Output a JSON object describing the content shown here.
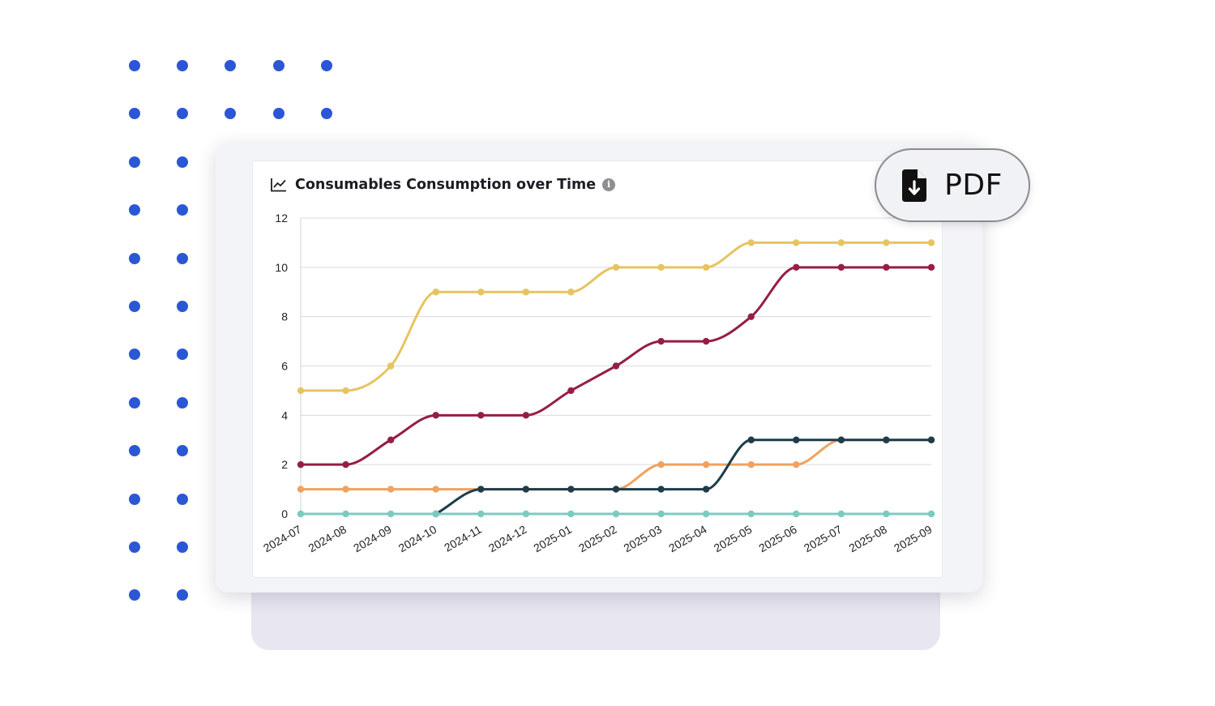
{
  "accent_color": "#2b57d6",
  "pdf_button": {
    "label": "PDF",
    "icon": "file-download-icon"
  },
  "chart_header": {
    "icon": "line-chart-icon",
    "info_icon": "info-icon"
  },
  "chart_data": {
    "type": "line",
    "title": "Consumables Consumption over Time",
    "xlabel": "",
    "ylabel": "",
    "x": [
      "2024-07",
      "2024-08",
      "2024-09",
      "2024-10",
      "2024-11",
      "2024-12",
      "2025-01",
      "2025-02",
      "2025-03",
      "2025-04",
      "2025-05",
      "2025-06",
      "2025-07",
      "2025-08",
      "2025-09"
    ],
    "ylim": [
      0,
      12
    ],
    "yticks": [
      "0",
      "2",
      "4",
      "6",
      "8",
      "10",
      "12"
    ],
    "grid": true,
    "legend": "none",
    "series": [
      {
        "color": "#e6c460",
        "values": [
          5,
          5,
          6,
          9,
          9,
          9,
          9,
          10,
          10,
          10,
          11,
          11,
          11,
          11,
          11
        ]
      },
      {
        "color": "#961e44",
        "values": [
          2,
          2,
          3,
          4,
          4,
          4,
          5,
          6,
          7,
          7,
          8,
          10,
          10,
          10,
          10
        ]
      },
      {
        "color": "#f0a25e",
        "values": [
          1,
          1,
          1,
          1,
          1,
          1,
          1,
          1,
          2,
          2,
          2,
          2,
          3,
          3,
          3
        ]
      },
      {
        "color": "#1f3c4a",
        "values": [
          null,
          null,
          null,
          0,
          1,
          1,
          1,
          1,
          1,
          1,
          3,
          3,
          3,
          3,
          3
        ]
      },
      {
        "color": "#7ccbc0",
        "values": [
          0,
          0,
          0,
          0,
          0,
          0,
          0,
          0,
          0,
          0,
          0,
          0,
          0,
          0,
          0
        ]
      }
    ]
  }
}
